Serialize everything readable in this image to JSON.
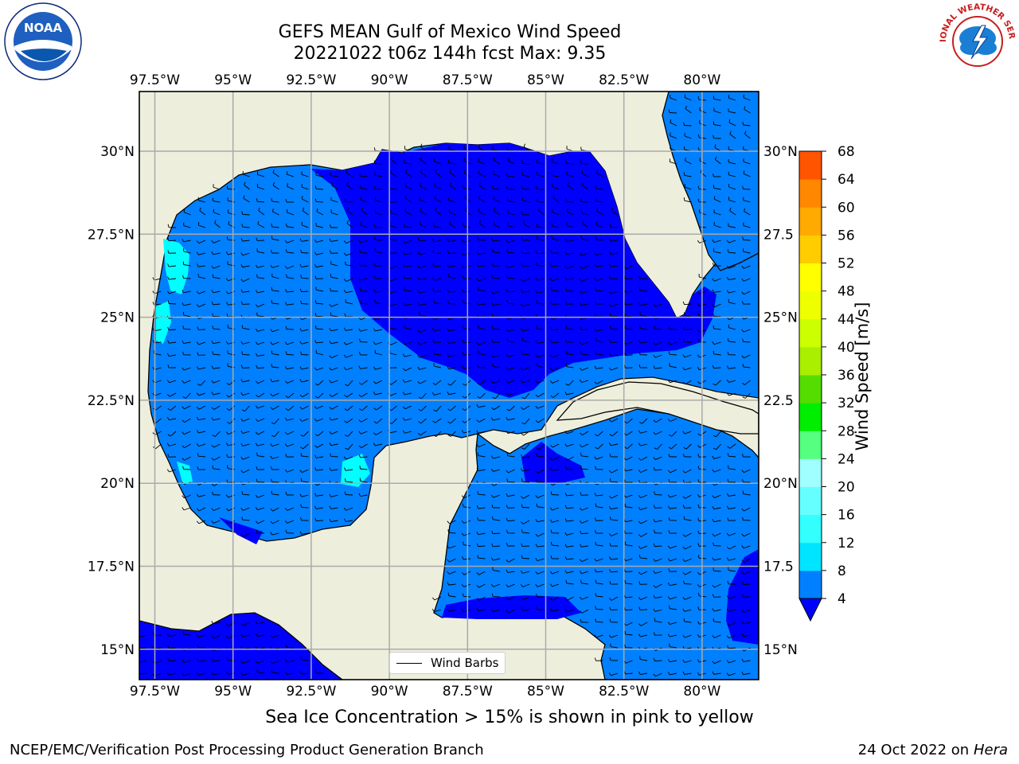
{
  "title_line1": "GEFS MEAN Gulf of Mexico Wind Speed",
  "title_line2": "20221022 t06z 144h fcst   Max: 9.35",
  "lon_labels": [
    "97.5°W",
    "95°W",
    "92.5°W",
    "90°W",
    "87.5°W",
    "85°W",
    "82.5°W",
    "80°W"
  ],
  "lat_labels": [
    "30°N",
    "27.5°N",
    "25°N",
    "22.5°N",
    "20°N",
    "17.5°N",
    "15°N"
  ],
  "lat_labels_right": [
    "30°N",
    "27.5",
    "25°N",
    "22.5",
    "20°N",
    "17.5",
    "15°N"
  ],
  "colorbar": {
    "label": "Wind Speed [m/s]",
    "ticks": [
      "4",
      "8",
      "12",
      "16",
      "20",
      "24",
      "28",
      "32",
      "36",
      "40",
      "44",
      "48",
      "52",
      "56",
      "60",
      "64",
      "68"
    ],
    "colors": [
      "#0080ff",
      "#00e5ff",
      "#33ffff",
      "#66ffff",
      "#a0ffff",
      "#55ff7f",
      "#00ee00",
      "#55dd00",
      "#aaee00",
      "#ccff00",
      "#eeff00",
      "#ffff00",
      "#ffcc00",
      "#ffaa00",
      "#ff8800",
      "#ff5500",
      "#ff2200",
      "#ff0000"
    ],
    "under_color": "#0000ff"
  },
  "colors": {
    "land": "#eeeedd",
    "low_wind": "#0000ff",
    "mid_wind": "#0080ff",
    "high_wind": "#00ffff",
    "grid": "#aaaaaa"
  },
  "legend_label": "Wind Barbs",
  "caption": "Sea Ice Concentration > 15% is shown in pink to yellow",
  "footer_left": "NCEP/EMC/Verification Post Processing Product Generation Branch",
  "footer_date": "24 Oct 2022 on ",
  "footer_machine": "Hera",
  "logos": {
    "left": "NOAA",
    "right": "NATIONAL WEATHER SERVICE"
  }
}
